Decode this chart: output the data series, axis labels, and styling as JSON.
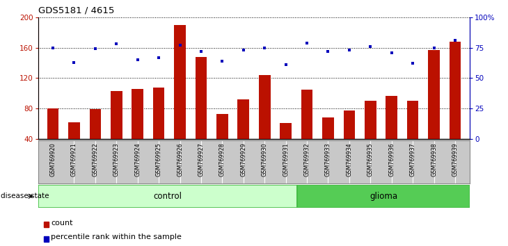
{
  "title": "GDS5181 / 4615",
  "samples": [
    "GSM769920",
    "GSM769921",
    "GSM769922",
    "GSM769923",
    "GSM769924",
    "GSM769925",
    "GSM769926",
    "GSM769927",
    "GSM769928",
    "GSM769929",
    "GSM769930",
    "GSM769931",
    "GSM769932",
    "GSM769933",
    "GSM769934",
    "GSM769935",
    "GSM769936",
    "GSM769937",
    "GSM769938",
    "GSM769939"
  ],
  "counts": [
    80,
    62,
    79,
    103,
    106,
    108,
    190,
    148,
    73,
    92,
    124,
    61,
    105,
    68,
    77,
    90,
    97,
    90,
    157,
    168
  ],
  "percentiles": [
    75,
    63,
    74,
    78,
    65,
    67,
    77,
    72,
    64,
    73,
    75,
    61,
    79,
    72,
    73,
    76,
    71,
    62,
    75,
    81
  ],
  "control_count": 12,
  "glioma_count": 8,
  "ylim_left": [
    40,
    200
  ],
  "ylim_right": [
    0,
    100
  ],
  "yticks_left": [
    40,
    80,
    120,
    160,
    200
  ],
  "yticks_right": [
    0,
    25,
    50,
    75,
    100
  ],
  "ytick_labels_right": [
    "0",
    "25",
    "50",
    "75",
    "100%"
  ],
  "bar_color": "#BB1100",
  "dot_color": "#0000BB",
  "bg_color": "#FFFFFF",
  "cell_bg": "#C8C8C8",
  "control_bg": "#CCFFCC",
  "glioma_bg": "#55CC55",
  "left_axis_color": "#BB1100",
  "right_axis_color": "#0000BB",
  "legend_count_label": "count",
  "legend_pct_label": "percentile rank within the sample",
  "disease_label": "disease state",
  "control_label": "control",
  "glioma_label": "glioma"
}
